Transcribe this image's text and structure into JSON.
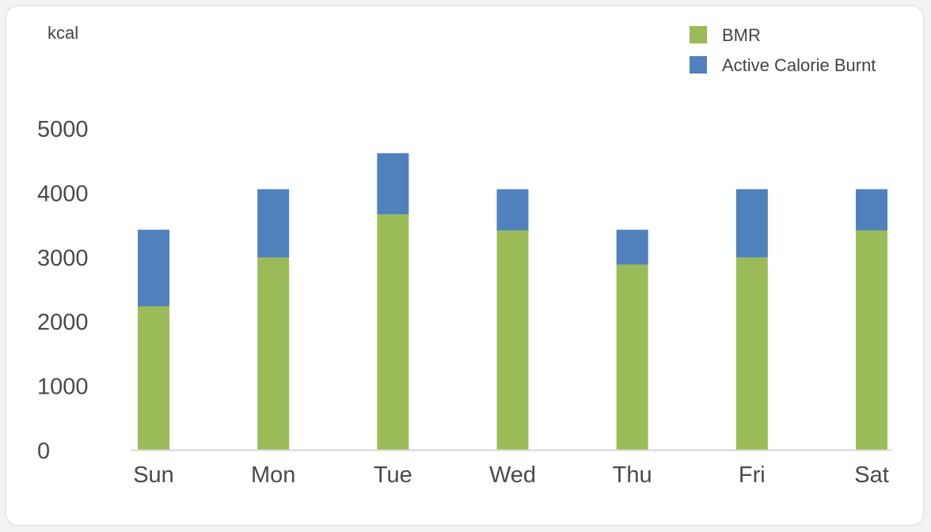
{
  "chart_data": {
    "type": "bar",
    "stacked": true,
    "ylabel": "kcal",
    "ylim": [
      0,
      5000
    ],
    "yticks": [
      0,
      1000,
      2000,
      3000,
      4000,
      5000
    ],
    "categories": [
      "Sun",
      "Mon",
      "Tue",
      "Wed",
      "Thu",
      "Fri",
      "Sat"
    ],
    "series": [
      {
        "name": "BMR",
        "color": "#9bbb59",
        "values": [
          2230,
          2990,
          3660,
          3410,
          2880,
          2990,
          3410
        ]
      },
      {
        "name": "Active Calorie Burnt",
        "color": "#4f81bd",
        "values": [
          1190,
          1060,
          950,
          640,
          540,
          1060,
          640
        ]
      }
    ],
    "legend_position": "top-right",
    "grid": false,
    "axis_color": "#d6d6d6"
  }
}
